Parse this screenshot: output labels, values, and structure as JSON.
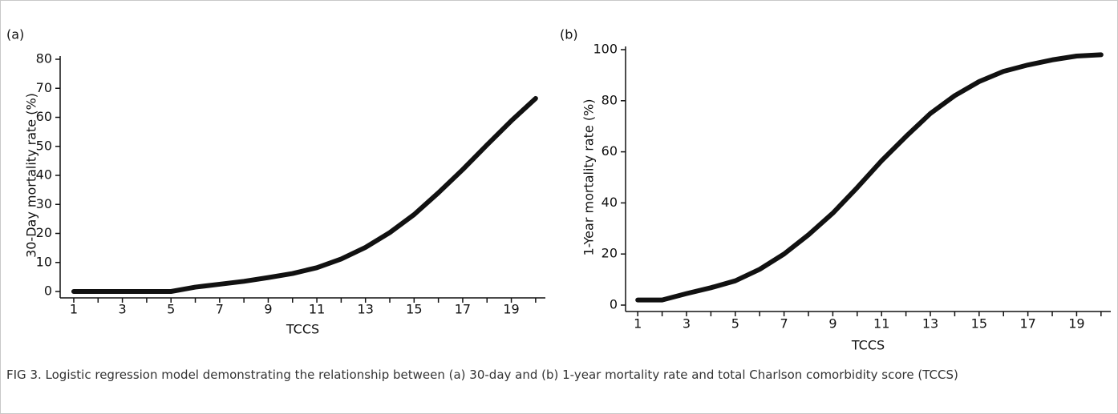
{
  "chart_data": [
    {
      "type": "line",
      "panel": "(a)",
      "x_label": "TCCS",
      "y_label": "30-Day mortality rate (%)",
      "x": [
        1,
        2,
        3,
        4,
        5,
        6,
        7,
        8,
        9,
        10,
        11,
        12,
        13,
        14,
        15,
        16,
        17,
        18,
        19,
        20
      ],
      "values": [
        0,
        0,
        0,
        0,
        0,
        1.5,
        2.5,
        3.5,
        4.8,
        6.2,
        8.2,
        11.2,
        15.2,
        20.3,
        26.5,
        34,
        42,
        50.5,
        58.8,
        66.5
      ],
      "color": "#111111",
      "xlim": [
        0.44,
        20.4
      ],
      "xticks": [
        1,
        3,
        5,
        7,
        9,
        11,
        13,
        15,
        17,
        19
      ],
      "xminorticks": [
        2,
        4,
        6,
        8,
        10,
        12,
        14,
        16,
        18,
        20
      ],
      "ylim": [
        0,
        80
      ],
      "yticks": [
        0,
        10,
        20,
        30,
        40,
        50,
        60,
        70,
        80
      ]
    },
    {
      "type": "line",
      "panel": "(b)",
      "x_label": "TCCS",
      "y_label": "1-Year mortality rate (%)",
      "x": [
        1,
        2,
        3,
        4,
        5,
        6,
        7,
        8,
        9,
        10,
        11,
        12,
        13,
        14,
        15,
        16,
        17,
        18,
        19,
        20
      ],
      "values": [
        2,
        2,
        4.5,
        6.8,
        9.5,
        14,
        20,
        27.5,
        36,
        46,
        56.5,
        66,
        75,
        82,
        87.5,
        91.5,
        94,
        96,
        97.5,
        98
      ],
      "color": "#111111",
      "xlim": [
        0.5,
        20.4
      ],
      "xticks": [
        1,
        3,
        5,
        7,
        9,
        11,
        13,
        15,
        17,
        19
      ],
      "xminorticks": [
        2,
        4,
        6,
        8,
        10,
        12,
        14,
        16,
        18,
        20
      ],
      "ylim": [
        0,
        100
      ],
      "yticks": [
        0,
        20,
        40,
        60,
        80,
        100
      ]
    }
  ],
  "caption": "FIG 3.  Logistic regression model demonstrating the relationship between (a) 30-day and (b) 1-year mortality rate and total Charlson comorbidity score (TCCS)"
}
